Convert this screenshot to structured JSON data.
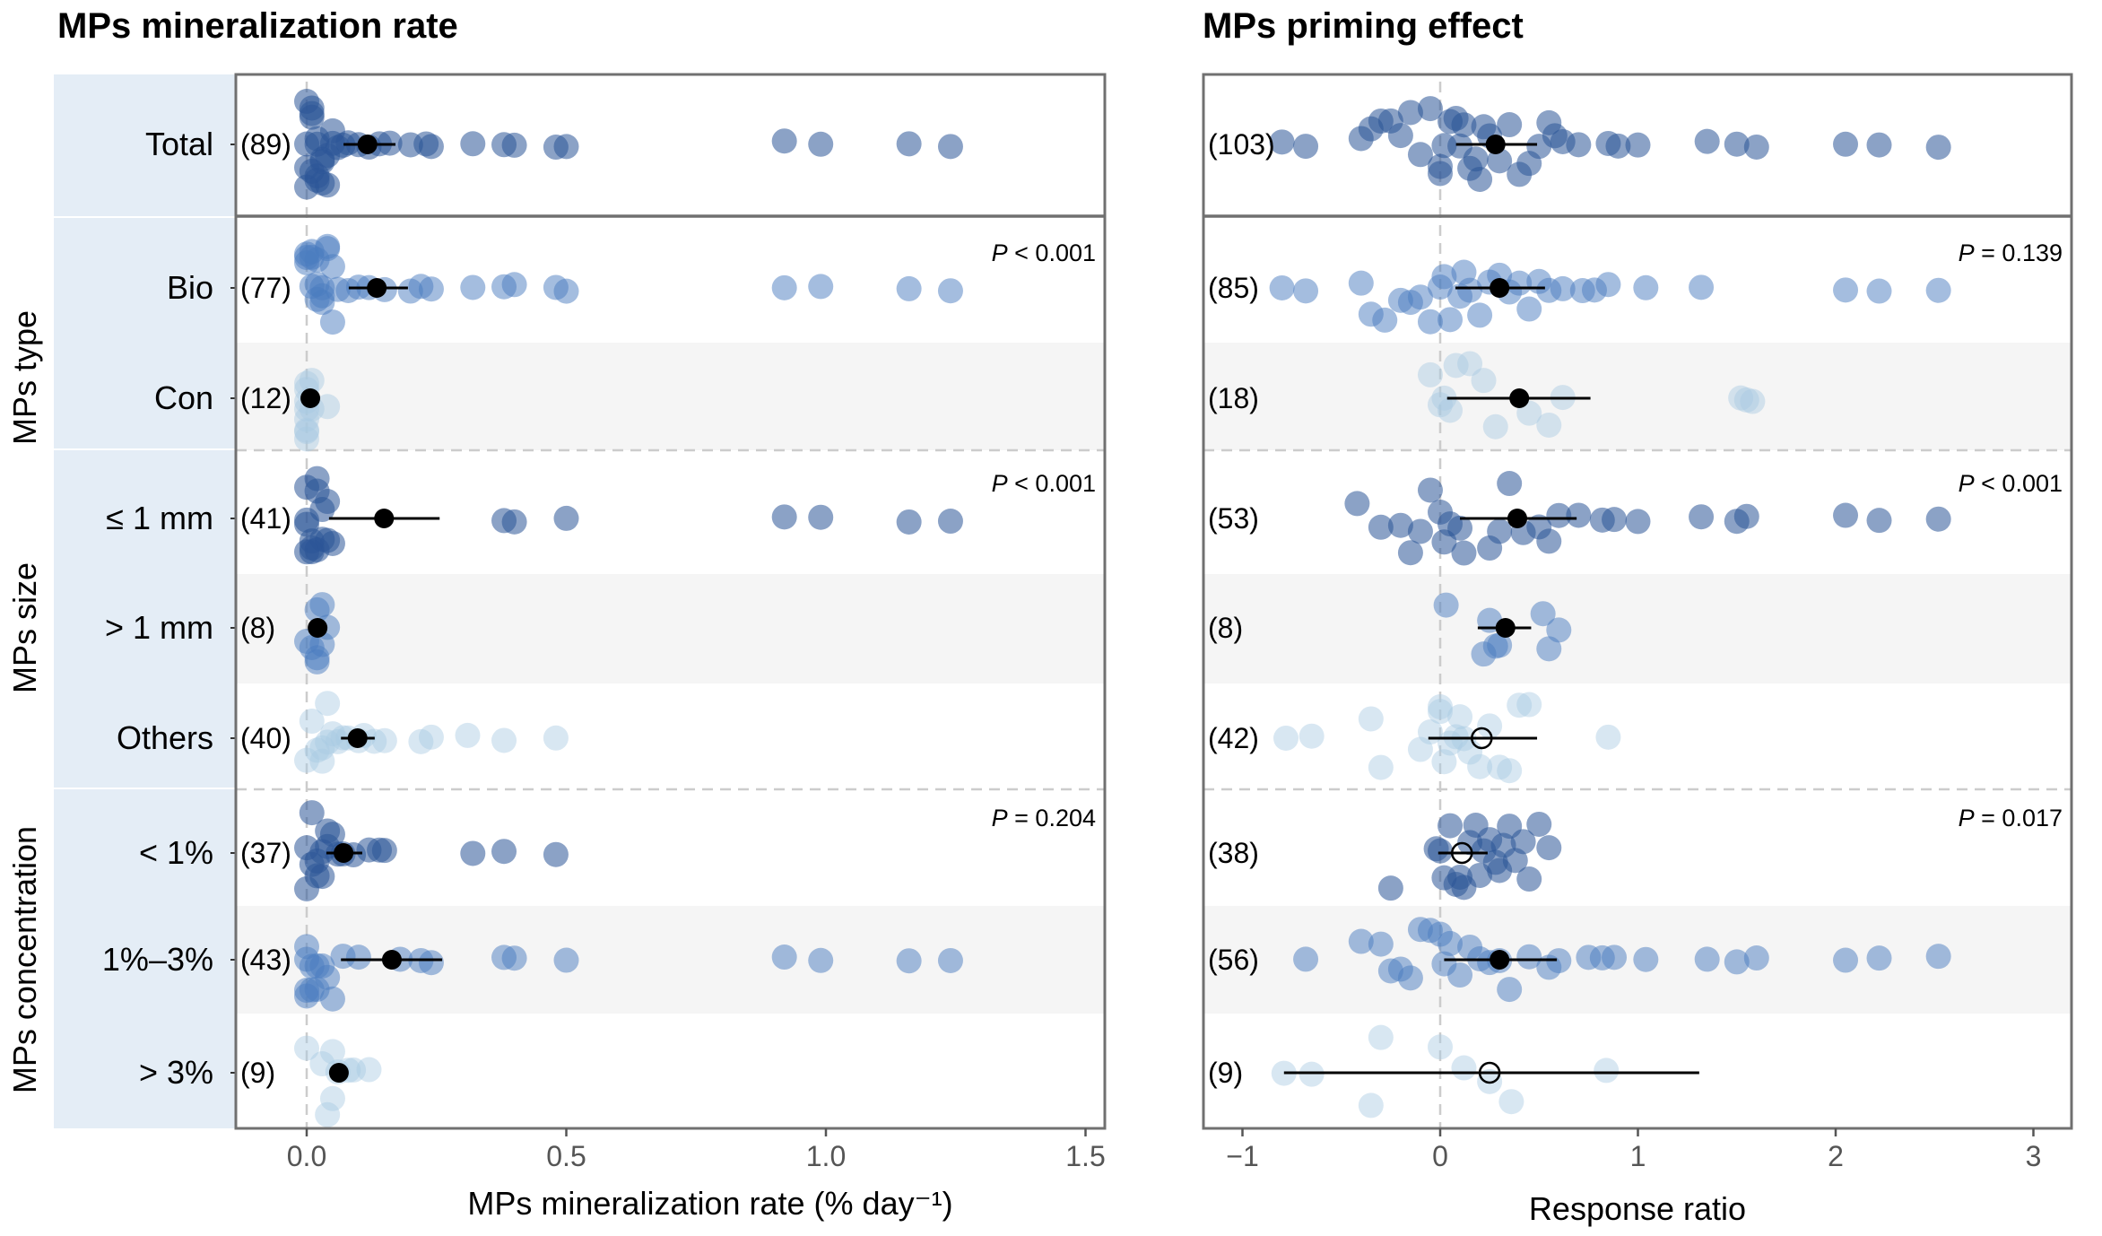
{
  "colors": {
    "strip_bg": "#E4EDF6",
    "band_bg": "#F5F5F5",
    "frame": "#707070",
    "zero_line": "#CCCCCC",
    "tier_dark": "#2B5597",
    "tier_mid": "#4A7BC0",
    "tier_light": "#A9C9E3",
    "mean": "#000000"
  },
  "groups": [
    {
      "label": "",
      "rows": [
        0
      ]
    },
    {
      "label": "MPs type",
      "rows": [
        1,
        2
      ]
    },
    {
      "label": "MPs size",
      "rows": [
        3,
        4,
        5
      ]
    },
    {
      "label": "MPs concentration",
      "rows": [
        6,
        7,
        8
      ]
    }
  ],
  "rows": [
    "Total",
    "Bio",
    "Con",
    "≤ 1 mm",
    "> 1 mm",
    "Others",
    "< 1%",
    "1%–3%",
    "> 3%"
  ],
  "chart_data": [
    {
      "type": "scatter",
      "title": "MPs mineralization rate",
      "xlabel": "MPs mineralization rate (% day⁻¹)",
      "xlim": [
        -0.14,
        1.53
      ],
      "xticks": [
        0.0,
        0.5,
        1.0,
        1.5
      ],
      "xtick_labels": [
        "0.0",
        "0.5",
        "1.0",
        "1.5"
      ],
      "reference_line": 0,
      "grid": false,
      "p_values": [
        null,
        "< 0.001",
        null,
        "< 0.001",
        null,
        null,
        "= 0.204",
        null,
        null
      ],
      "rows": [
        {
          "label": "Total",
          "n": "(89)",
          "tier": "dark",
          "mean": 0.117,
          "ci": [
            0.071,
            0.171
          ],
          "filled": true,
          "points": [
            0.0,
            0.0,
            0.0,
            0.0,
            0.01,
            0.01,
            0.01,
            0.01,
            0.02,
            0.02,
            0.02,
            0.02,
            0.03,
            0.03,
            0.03,
            0.04,
            0.04,
            0.05,
            0.05,
            0.06,
            0.07,
            0.08,
            0.1,
            0.12,
            0.14,
            0.16,
            0.2,
            0.23,
            0.24,
            0.32,
            0.38,
            0.4,
            0.48,
            0.5,
            0.92,
            0.99,
            1.16,
            1.24
          ]
        },
        {
          "label": "Bio",
          "n": "(77)",
          "tier": "mid",
          "mean": 0.135,
          "ci": [
            0.081,
            0.195
          ],
          "filled": true,
          "points": [
            0.0,
            0.0,
            0.0,
            0.01,
            0.01,
            0.01,
            0.02,
            0.02,
            0.02,
            0.03,
            0.03,
            0.03,
            0.04,
            0.04,
            0.05,
            0.05,
            0.06,
            0.08,
            0.1,
            0.12,
            0.15,
            0.2,
            0.22,
            0.24,
            0.32,
            0.38,
            0.4,
            0.48,
            0.5,
            0.92,
            0.99,
            1.16,
            1.24
          ]
        },
        {
          "label": "Con",
          "n": "(12)",
          "tier": "light",
          "mean": 0.007,
          "ci": [
            0.0,
            0.015
          ],
          "filled": true,
          "points": [
            0.0,
            0.0,
            0.0,
            0.0,
            0.0,
            0.0,
            0.0,
            0.0,
            0.01,
            0.01,
            0.04
          ]
        },
        {
          "label": "≤ 1 mm",
          "n": "(41)",
          "tier": "dark",
          "mean": 0.149,
          "ci": [
            0.043,
            0.256
          ],
          "filled": true,
          "points": [
            0.0,
            0.0,
            0.0,
            0.0,
            0.01,
            0.01,
            0.01,
            0.02,
            0.02,
            0.02,
            0.03,
            0.03,
            0.04,
            0.04,
            0.05,
            0.38,
            0.4,
            0.5,
            0.92,
            0.99,
            1.16,
            1.24
          ]
        },
        {
          "label": "> 1 mm",
          "n": "(8)",
          "tier": "mid",
          "mean": 0.021,
          "ci": [
            0.012,
            0.03
          ],
          "filled": true,
          "points": [
            0.0,
            0.01,
            0.02,
            0.02,
            0.03,
            0.03,
            0.02,
            0.04
          ]
        },
        {
          "label": "Others",
          "n": "(40)",
          "tier": "light",
          "mean": 0.098,
          "ci": [
            0.066,
            0.131
          ],
          "filled": true,
          "points": [
            0.0,
            0.01,
            0.02,
            0.03,
            0.03,
            0.04,
            0.04,
            0.05,
            0.06,
            0.07,
            0.08,
            0.1,
            0.11,
            0.13,
            0.15,
            0.22,
            0.24,
            0.31,
            0.38,
            0.48
          ]
        },
        {
          "label": "< 1%",
          "n": "(37)",
          "tier": "dark",
          "mean": 0.071,
          "ci": [
            0.038,
            0.107
          ],
          "filled": true,
          "points": [
            0.0,
            0.0,
            0.01,
            0.01,
            0.02,
            0.02,
            0.03,
            0.03,
            0.04,
            0.04,
            0.05,
            0.06,
            0.07,
            0.09,
            0.12,
            0.14,
            0.15,
            0.32,
            0.38,
            0.48
          ]
        },
        {
          "label": "1%–3%",
          "n": "(43)",
          "tier": "mid",
          "mean": 0.164,
          "ci": [
            0.066,
            0.261
          ],
          "filled": true,
          "points": [
            0.0,
            0.0,
            0.0,
            0.0,
            0.01,
            0.01,
            0.02,
            0.02,
            0.03,
            0.04,
            0.05,
            0.07,
            0.1,
            0.18,
            0.22,
            0.24,
            0.38,
            0.4,
            0.5,
            0.92,
            0.99,
            1.16,
            1.24
          ]
        },
        {
          "label": "> 3%",
          "n": "(9)",
          "tier": "light",
          "mean": 0.062,
          "ci": [
            0.052,
            0.075
          ],
          "filled": true,
          "points": [
            0.0,
            0.03,
            0.04,
            0.05,
            0.06,
            0.08,
            0.09,
            0.12,
            0.05
          ]
        }
      ]
    },
    {
      "type": "scatter",
      "title": "MPs priming effect",
      "xlabel": "Response ratio",
      "xlim": [
        -1.2,
        3.2
      ],
      "xticks": [
        -1,
        0,
        1,
        2,
        3
      ],
      "xtick_labels": [
        "−1",
        "0",
        "1",
        "2",
        "3"
      ],
      "reference_line": 0,
      "grid": false,
      "p_values": [
        null,
        "= 0.139",
        null,
        "< 0.001",
        null,
        null,
        "= 0.017",
        null,
        null
      ],
      "rows": [
        {
          "label": "Total",
          "n": "(103)",
          "tier": "dark",
          "mean": 0.28,
          "ci": [
            0.08,
            0.49
          ],
          "filled": true,
          "points": [
            -0.8,
            -0.68,
            -0.4,
            -0.35,
            -0.3,
            -0.25,
            -0.2,
            -0.15,
            -0.1,
            -0.05,
            0.0,
            0.0,
            0.02,
            0.05,
            0.08,
            0.1,
            0.12,
            0.15,
            0.18,
            0.2,
            0.22,
            0.25,
            0.3,
            0.35,
            0.4,
            0.45,
            0.5,
            0.55,
            0.58,
            0.62,
            0.7,
            0.85,
            0.9,
            1.0,
            1.35,
            1.5,
            1.6,
            2.05,
            2.22,
            2.52
          ]
        },
        {
          "label": "Bio",
          "n": "(85)",
          "tier": "mid",
          "mean": 0.3,
          "ci": [
            0.077,
            0.53
          ],
          "filled": true,
          "points": [
            -0.8,
            -0.68,
            -0.4,
            -0.35,
            -0.28,
            -0.2,
            -0.15,
            -0.1,
            -0.05,
            0.0,
            0.02,
            0.05,
            0.1,
            0.12,
            0.15,
            0.2,
            0.25,
            0.3,
            0.35,
            0.4,
            0.45,
            0.5,
            0.55,
            0.62,
            0.72,
            0.78,
            0.85,
            1.04,
            1.32,
            2.05,
            2.22,
            2.52
          ]
        },
        {
          "label": "Con",
          "n": "(18)",
          "tier": "light",
          "mean": 0.4,
          "ci": [
            0.035,
            0.76
          ],
          "filled": true,
          "points": [
            -0.05,
            0.0,
            0.02,
            0.05,
            0.08,
            0.15,
            0.22,
            0.28,
            0.45,
            0.55,
            0.62,
            1.52,
            1.55,
            1.58
          ]
        },
        {
          "label": "≤ 1 mm",
          "n": "(53)",
          "tier": "dark",
          "mean": 0.39,
          "ci": [
            0.1,
            0.69
          ],
          "filled": true,
          "points": [
            -0.42,
            -0.3,
            -0.2,
            -0.15,
            -0.1,
            -0.05,
            0.0,
            0.02,
            0.05,
            0.1,
            0.12,
            0.25,
            0.3,
            0.35,
            0.42,
            0.5,
            0.55,
            0.6,
            0.7,
            0.82,
            0.88,
            1.0,
            1.32,
            1.5,
            1.55,
            2.05,
            2.22,
            2.52
          ]
        },
        {
          "label": "> 1 mm",
          "n": "(8)",
          "tier": "mid",
          "mean": 0.33,
          "ci": [
            0.19,
            0.46
          ],
          "filled": true,
          "points": [
            0.03,
            0.22,
            0.25,
            0.3,
            0.28,
            0.52,
            0.55,
            0.6
          ]
        },
        {
          "label": "Others",
          "n": "(42)",
          "tier": "light",
          "mean": 0.21,
          "ci": [
            -0.06,
            0.49
          ],
          "filled": false,
          "points": [
            -0.78,
            -0.65,
            -0.35,
            -0.3,
            -0.1,
            -0.05,
            0.0,
            0.0,
            0.02,
            0.05,
            0.08,
            0.1,
            0.12,
            0.15,
            0.2,
            0.25,
            0.3,
            0.35,
            0.4,
            0.45,
            0.85
          ]
        },
        {
          "label": "< 1%",
          "n": "(38)",
          "tier": "dark",
          "mean": 0.11,
          "ci": [
            -0.01,
            0.24
          ],
          "filled": false,
          "points": [
            -0.25,
            -0.02,
            0.0,
            0.02,
            0.05,
            0.08,
            0.1,
            0.12,
            0.15,
            0.18,
            0.2,
            0.22,
            0.25,
            0.28,
            0.3,
            0.32,
            0.35,
            0.38,
            0.42,
            0.45,
            0.5,
            0.55
          ]
        },
        {
          "label": "1%–3%",
          "n": "(56)",
          "tier": "mid",
          "mean": 0.3,
          "ci": [
            0.02,
            0.59
          ],
          "filled": true,
          "points": [
            -0.68,
            -0.4,
            -0.3,
            -0.25,
            -0.2,
            -0.15,
            -0.1,
            -0.05,
            0.0,
            0.02,
            0.05,
            0.1,
            0.15,
            0.2,
            0.25,
            0.3,
            0.35,
            0.45,
            0.55,
            0.6,
            0.75,
            0.82,
            0.88,
            1.04,
            1.35,
            1.5,
            1.6,
            2.05,
            2.22,
            2.52
          ]
        },
        {
          "label": "> 3%",
          "n": "(9)",
          "tier": "light",
          "mean": 0.25,
          "ci": [
            -0.79,
            1.31
          ],
          "filled": false,
          "points": [
            -0.79,
            -0.65,
            -0.35,
            -0.3,
            0.0,
            0.12,
            0.25,
            0.36,
            0.84
          ]
        }
      ]
    }
  ]
}
